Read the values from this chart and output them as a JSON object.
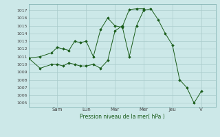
{
  "background_color": "#cce8e8",
  "grid_color": "#aacccc",
  "line_color": "#1a5c1a",
  "marker_color": "#1a5c1a",
  "xlabel": "Pression niveau de la mer( hPa )",
  "ylim": [
    1004.5,
    1017.8
  ],
  "yticks": [
    1005,
    1006,
    1007,
    1008,
    1009,
    1010,
    1011,
    1012,
    1013,
    1014,
    1015,
    1016,
    1017
  ],
  "day_labels": [
    "Sam",
    "Lun",
    "Mar",
    "Mer",
    "Jeu",
    "V"
  ],
  "day_positions": [
    2.0,
    4.0,
    6.0,
    8.0,
    10.0,
    12.0
  ],
  "xlim": [
    0,
    13.0
  ],
  "series1_x": [
    0.0,
    0.8,
    1.6,
    2.0,
    2.4,
    2.8,
    3.2,
    3.6,
    4.0,
    4.5,
    5.0,
    5.5,
    6.0,
    6.5,
    7.0,
    7.5,
    8.0,
    8.5,
    9.0,
    9.5,
    10.0,
    10.5,
    11.0,
    11.5,
    12.0
  ],
  "series1_y": [
    1010.8,
    1009.5,
    1010.0,
    1010.0,
    1009.8,
    1010.2,
    1010.0,
    1009.8,
    1009.8,
    1010.0,
    1009.5,
    1010.5,
    1014.3,
    1015.0,
    1011.0,
    1015.0,
    1017.0,
    1017.2,
    1015.8,
    1014.0,
    1012.5,
    1008.0,
    1007.0,
    1005.0,
    1006.5
  ],
  "series2_x": [
    0.0,
    0.8,
    1.6,
    2.0,
    2.4,
    2.8,
    3.2,
    3.6,
    4.0,
    4.5,
    5.0,
    5.5,
    6.0,
    6.5,
    7.0,
    7.5,
    8.0
  ],
  "series2_y": [
    1010.8,
    1011.0,
    1011.5,
    1012.2,
    1012.0,
    1011.8,
    1013.0,
    1012.8,
    1013.0,
    1011.0,
    1014.5,
    1016.0,
    1015.0,
    1014.8,
    1017.1,
    1017.2,
    1017.2
  ]
}
